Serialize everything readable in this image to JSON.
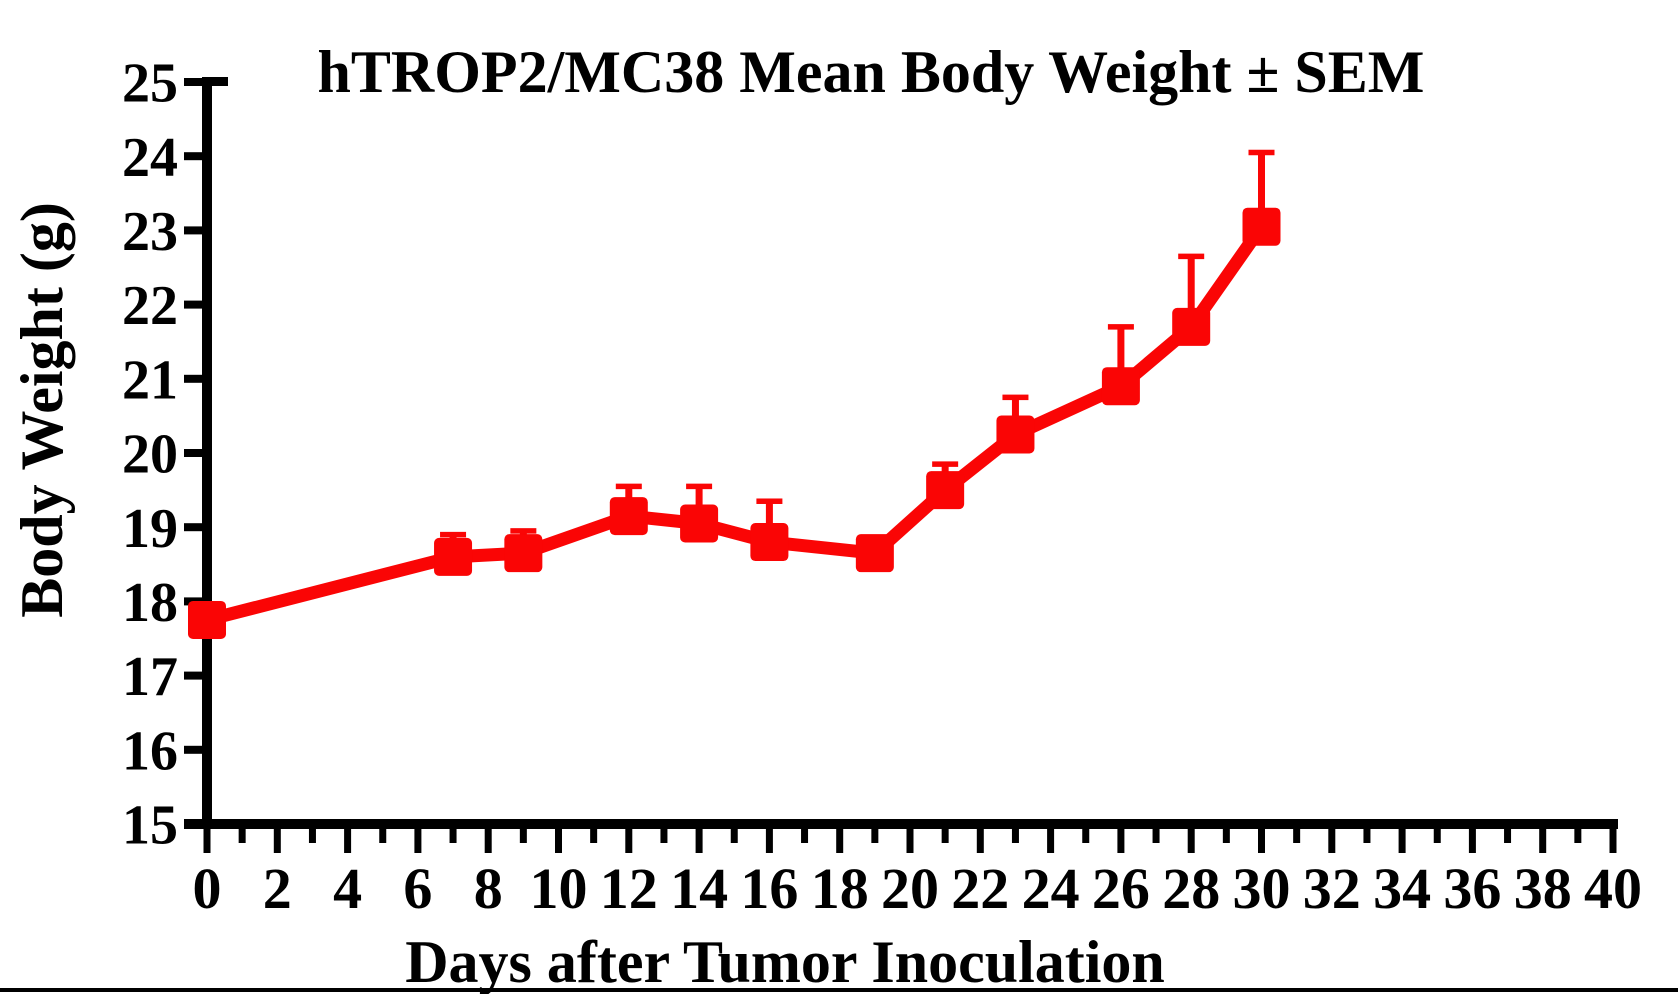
{
  "page": {
    "background_color": "#ffffff",
    "bottom_border_color": "#000000",
    "axis_color": "#000000"
  },
  "chart_data": {
    "type": "line",
    "title": "hTROP2/MC38 Mean Body Weight ± SEM",
    "xlabel": "Days after Tumor Inoculation",
    "ylabel": "Body Weight (g)",
    "x": [
      0,
      7,
      9,
      12,
      14,
      16,
      19,
      21,
      23,
      26,
      28,
      30
    ],
    "series": [
      {
        "name": "hTROP2/MC38",
        "values": [
          17.75,
          18.6,
          18.65,
          19.15,
          19.05,
          18.8,
          18.65,
          19.5,
          20.25,
          20.9,
          21.7,
          23.05
        ],
        "sem_upper": [
          0,
          0.3,
          0.3,
          0.4,
          0.5,
          0.55,
          0,
          0.35,
          0.5,
          0.8,
          0.95,
          1.0
        ],
        "color": "#fa0505",
        "marker": "square"
      }
    ],
    "xlim": [
      0,
      40
    ],
    "ylim": [
      15,
      25
    ],
    "x_major_step": 2,
    "x_minor_step": 1,
    "y_major_step": 1,
    "grid": false,
    "legend_position": "none",
    "error_bars": "upper_only"
  }
}
